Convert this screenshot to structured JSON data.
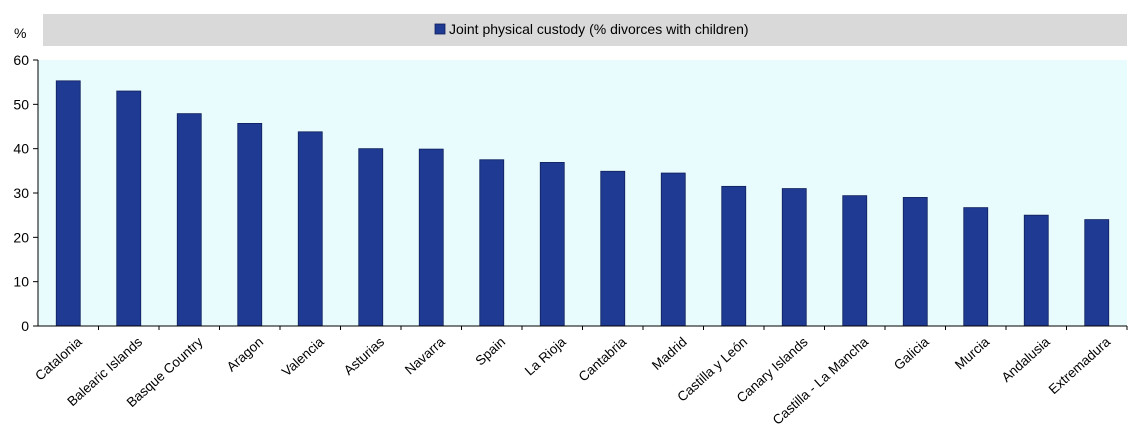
{
  "chart_data": {
    "type": "bar",
    "ylabel": "%",
    "ylim": [
      0,
      60
    ],
    "yticks": [
      0,
      10,
      20,
      30,
      40,
      50,
      60
    ],
    "grid": false,
    "legend_position": "top",
    "categories": [
      "Catalonia",
      "Balearic Islands",
      "Basque Country",
      "Aragon",
      "Valencia",
      "Asturias",
      "Navarra",
      "Spain",
      "La Rioja",
      "Cantabria",
      "Madrid",
      "Castilla y León",
      "Canary Islands",
      "Castilla - La Mancha",
      "Galicia",
      "Murcia",
      "Andalusia",
      "Extremadura"
    ],
    "series": [
      {
        "name": "Joint physical custody (% divorces with children)",
        "color": "#1f3a93",
        "values": [
          55.3,
          53.0,
          47.9,
          45.7,
          43.8,
          40.0,
          39.9,
          37.5,
          36.9,
          34.9,
          34.5,
          31.5,
          31.0,
          29.4,
          29.0,
          26.7,
          25.0,
          24.0
        ]
      }
    ]
  },
  "colors": {
    "plot_background": "#e8fbfd",
    "legend_band": "#d9d9d9",
    "bar": "#1f3a93",
    "bar_edge": "#0f1f5c"
  }
}
